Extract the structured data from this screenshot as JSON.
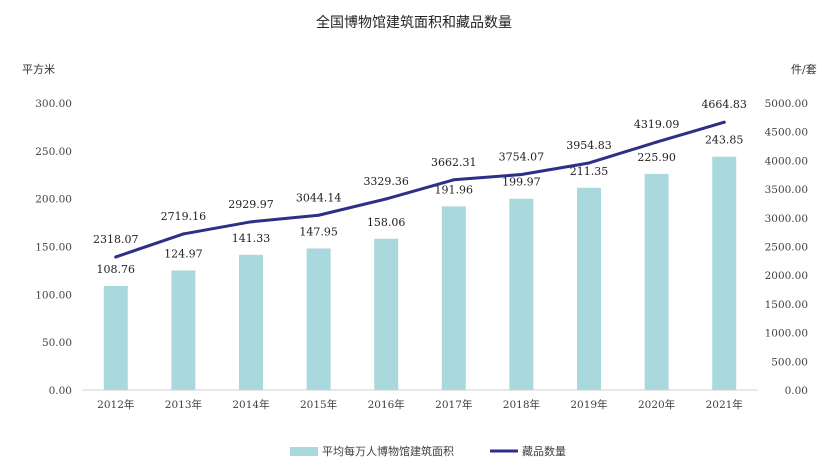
{
  "chart_data": {
    "type": "bar",
    "title": "全国博物馆建筑面积和藏品数量",
    "left_unit": "平方米",
    "right_unit": "件/套",
    "categories": [
      "2012年",
      "2013年",
      "2014年",
      "2015年",
      "2016年",
      "2017年",
      "2018年",
      "2019年",
      "2020年",
      "2021年"
    ],
    "left_axis": {
      "ylim": [
        0,
        300
      ],
      "ticks": [
        "0.00",
        "50.00",
        "100.00",
        "150.00",
        "200.00",
        "250.00",
        "300.00"
      ]
    },
    "right_axis": {
      "ylim": [
        0,
        5000
      ],
      "ticks": [
        "0.00",
        "500.00",
        "1000.00",
        "1500.00",
        "2000.00",
        "2500.00",
        "3000.00",
        "3500.00",
        "4000.00",
        "4500.00",
        "5000.00"
      ]
    },
    "series": [
      {
        "name": "平均每万人博物馆建筑面积",
        "type": "bar",
        "axis": "left",
        "color": "#a9d9dc",
        "values": [
          108.76,
          124.97,
          141.33,
          147.95,
          158.06,
          191.96,
          199.97,
          211.35,
          225.9,
          243.85
        ],
        "labels": [
          "108.76",
          "124.97",
          "141.33",
          "147.95",
          "158.06",
          "191.96",
          "199.97",
          "211.35",
          "225.90",
          "243.85"
        ]
      },
      {
        "name": "藏品数量",
        "type": "line",
        "axis": "right",
        "color": "#2e2f86",
        "values": [
          2318.07,
          2719.16,
          2929.97,
          3044.14,
          3329.36,
          3662.31,
          3754.07,
          3954.83,
          4319.09,
          4664.83
        ],
        "labels": [
          "2318.07",
          "2719.16",
          "2929.97",
          "3044.14",
          "3329.36",
          "3662.31",
          "3754.07",
          "3954.83",
          "4319.09",
          "4664.83"
        ]
      }
    ],
    "grid": false,
    "legend_position": "bottom"
  }
}
